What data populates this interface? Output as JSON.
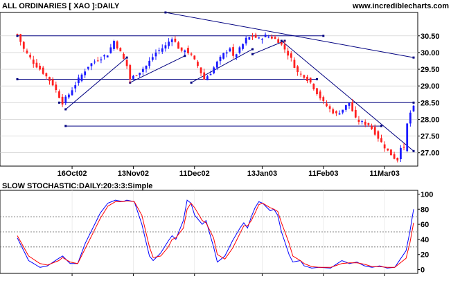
{
  "chart_data": [
    {
      "type": "candlestick",
      "title": "ALL ORDINARIES [ XAO ]:DAILY",
      "watermark": "www.incrediblecharts.com",
      "y_ticks": [
        "30.50",
        "30.00",
        "29.50",
        "29.00",
        "28.50",
        "28.00",
        "27.50",
        "27.00"
      ],
      "y_tick_values": [
        30.5,
        30.0,
        29.5,
        29.0,
        28.5,
        28.0,
        27.5,
        27.0
      ],
      "ylim": [
        26.6,
        31.2
      ],
      "x_tick_labels": [
        "16Oct02",
        "13Nov02",
        "11Dec02",
        "13Jan03",
        "11Feb03",
        "11Mar03"
      ],
      "x_tick_index": [
        17,
        36,
        55,
        76,
        95,
        114
      ],
      "n_bars": 124,
      "colors": {
        "up": "#1a1aff",
        "down": "#ff2020",
        "line": "#000080",
        "grid": "#c8c8c8"
      },
      "close_anchors": [
        [
          0,
          30.55
        ],
        [
          2,
          30.1
        ],
        [
          5,
          29.7
        ],
        [
          8,
          29.4
        ],
        [
          11,
          29.05
        ],
        [
          14,
          28.5
        ],
        [
          16,
          28.75
        ],
        [
          19,
          29.2
        ],
        [
          22,
          29.6
        ],
        [
          25,
          29.8
        ],
        [
          28,
          29.95
        ],
        [
          30,
          30.35
        ],
        [
          32,
          30.0
        ],
        [
          34,
          29.6
        ],
        [
          35,
          29.2
        ],
        [
          37,
          29.35
        ],
        [
          40,
          29.6
        ],
        [
          43,
          30.0
        ],
        [
          46,
          30.2
        ],
        [
          48,
          30.45
        ],
        [
          49,
          30.3
        ],
        [
          51,
          30.0
        ],
        [
          52,
          30.1
        ],
        [
          54,
          29.9
        ],
        [
          56,
          29.6
        ],
        [
          58,
          29.2
        ],
        [
          60,
          29.4
        ],
        [
          62,
          29.7
        ],
        [
          64,
          29.95
        ],
        [
          66,
          30.15
        ],
        [
          67,
          29.85
        ],
        [
          69,
          30.1
        ],
        [
          71,
          30.4
        ],
        [
          73,
          30.5
        ],
        [
          75,
          30.4
        ],
        [
          77,
          30.5
        ],
        [
          79,
          30.45
        ],
        [
          81,
          30.35
        ],
        [
          83,
          30.1
        ],
        [
          85,
          29.8
        ],
        [
          87,
          29.4
        ],
        [
          89,
          29.3
        ],
        [
          91,
          29.1
        ],
        [
          93,
          28.8
        ],
        [
          95,
          28.5
        ],
        [
          97,
          28.3
        ],
        [
          99,
          28.15
        ],
        [
          101,
          28.3
        ],
        [
          103,
          28.5
        ],
        [
          105,
          28.0
        ],
        [
          107,
          27.9
        ],
        [
          109,
          27.85
        ],
        [
          111,
          27.6
        ],
        [
          113,
          27.3
        ],
        [
          115,
          27.05
        ],
        [
          117,
          26.85
        ],
        [
          118,
          26.8
        ],
        [
          119,
          27.2
        ],
        [
          120,
          27.1
        ],
        [
          121,
          27.85
        ],
        [
          122,
          28.2
        ],
        [
          123,
          28.35
        ]
      ],
      "lines": [
        {
          "name": "resistance-top",
          "from": [
            0,
            30.5
          ],
          "to": [
            95,
            30.5
          ]
        },
        {
          "name": "mid-horizontal-2950",
          "from": [
            0,
            29.2
          ],
          "to": [
            93,
            29.2
          ]
        },
        {
          "name": "horizontal-2850",
          "from": [
            13,
            28.5
          ],
          "to": [
            123,
            28.5
          ]
        },
        {
          "name": "horizontal-2780",
          "from": [
            15,
            27.8
          ],
          "to": [
            113,
            27.8
          ]
        },
        {
          "name": "downtrend-long",
          "from": [
            46,
            31.2
          ],
          "to": [
            123,
            29.85
          ]
        },
        {
          "name": "downtrend-steep",
          "from": [
            82,
            30.35
          ],
          "to": [
            123,
            27.05
          ]
        },
        {
          "name": "uptrend-1",
          "from": [
            15,
            28.3
          ],
          "to": [
            34,
            29.85
          ]
        },
        {
          "name": "uptrend-2",
          "from": [
            35,
            29.1
          ],
          "to": [
            52,
            29.9
          ]
        },
        {
          "name": "uptrend-3",
          "from": [
            54,
            29.1
          ],
          "to": [
            73,
            30.1
          ]
        },
        {
          "name": "uptrend-4",
          "from": [
            73,
            29.95
          ],
          "to": [
            83,
            30.35
          ]
        }
      ]
    },
    {
      "type": "line",
      "title": "SLOW STOCHASTIC:DAILY:20:3:3:Simple",
      "ylim": [
        -5,
        105
      ],
      "y_ticks": [
        "100",
        "80",
        "60",
        "40",
        "20",
        "0"
      ],
      "y_tick_values": [
        100,
        80,
        60,
        40,
        20,
        0
      ],
      "reference_lines": [
        70,
        50,
        30
      ],
      "series": [
        {
          "color": "#0000ff",
          "anchors": [
            [
              0,
              42
            ],
            [
              3,
              12
            ],
            [
              6,
              3
            ],
            [
              8,
              5
            ],
            [
              11,
              15
            ],
            [
              12,
              18
            ],
            [
              14,
              8
            ],
            [
              16,
              8
            ],
            [
              18,
              35
            ],
            [
              20,
              55
            ],
            [
              22,
              75
            ],
            [
              24,
              88
            ],
            [
              26,
              92
            ],
            [
              28,
              90
            ],
            [
              29,
              92
            ],
            [
              31,
              90
            ],
            [
              33,
              60
            ],
            [
              35,
              18
            ],
            [
              36,
              12
            ],
            [
              38,
              22
            ],
            [
              40,
              38
            ],
            [
              41,
              45
            ],
            [
              42,
              40
            ],
            [
              44,
              65
            ],
            [
              45,
              92
            ],
            [
              46,
              88
            ],
            [
              47,
              72
            ],
            [
              49,
              60
            ],
            [
              50,
              65
            ],
            [
              52,
              30
            ],
            [
              53,
              10
            ],
            [
              55,
              18
            ],
            [
              57,
              38
            ],
            [
              59,
              55
            ],
            [
              60,
              62
            ],
            [
              61,
              55
            ],
            [
              62,
              70
            ],
            [
              63,
              82
            ],
            [
              64,
              90
            ],
            [
              65,
              88
            ],
            [
              67,
              78
            ],
            [
              68,
              80
            ],
            [
              69,
              72
            ],
            [
              70,
              50
            ],
            [
              72,
              20
            ],
            [
              73,
              10
            ],
            [
              75,
              12
            ],
            [
              76,
              5
            ],
            [
              78,
              2
            ],
            [
              80,
              3
            ],
            [
              83,
              2
            ],
            [
              86,
              12
            ],
            [
              88,
              8
            ],
            [
              90,
              10
            ],
            [
              92,
              5
            ],
            [
              94,
              3
            ],
            [
              96,
              5
            ],
            [
              98,
              2
            ],
            [
              100,
              3
            ],
            [
              103,
              25
            ],
            [
              104,
              50
            ],
            [
              105,
              80
            ]
          ]
        },
        {
          "color": "#ff0000",
          "anchors": [
            [
              0,
              45
            ],
            [
              3,
              18
            ],
            [
              6,
              8
            ],
            [
              8,
              6
            ],
            [
              11,
              12
            ],
            [
              12,
              16
            ],
            [
              14,
              10
            ],
            [
              16,
              8
            ],
            [
              18,
              28
            ],
            [
              20,
              48
            ],
            [
              22,
              68
            ],
            [
              24,
              84
            ],
            [
              26,
              90
            ],
            [
              28,
              90
            ],
            [
              29,
              91
            ],
            [
              31,
              90
            ],
            [
              33,
              72
            ],
            [
              35,
              30
            ],
            [
              36,
              16
            ],
            [
              38,
              18
            ],
            [
              40,
              30
            ],
            [
              41,
              40
            ],
            [
              42,
              42
            ],
            [
              44,
              55
            ],
            [
              45,
              80
            ],
            [
              46,
              88
            ],
            [
              47,
              82
            ],
            [
              49,
              65
            ],
            [
              50,
              62
            ],
            [
              52,
              42
            ],
            [
              53,
              20
            ],
            [
              55,
              14
            ],
            [
              57,
              28
            ],
            [
              59,
              48
            ],
            [
              60,
              58
            ],
            [
              61,
              58
            ],
            [
              62,
              65
            ],
            [
              63,
              75
            ],
            [
              64,
              86
            ],
            [
              65,
              88
            ],
            [
              67,
              82
            ],
            [
              68,
              80
            ],
            [
              69,
              77
            ],
            [
              70,
              62
            ],
            [
              72,
              35
            ],
            [
              73,
              18
            ],
            [
              75,
              12
            ],
            [
              76,
              8
            ],
            [
              78,
              4
            ],
            [
              80,
              3
            ],
            [
              83,
              3
            ],
            [
              86,
              8
            ],
            [
              88,
              9
            ],
            [
              90,
              9
            ],
            [
              92,
              7
            ],
            [
              94,
              4
            ],
            [
              96,
              4
            ],
            [
              98,
              3
            ],
            [
              100,
              3
            ],
            [
              103,
              15
            ],
            [
              104,
              35
            ],
            [
              105,
              62
            ]
          ]
        }
      ]
    }
  ]
}
